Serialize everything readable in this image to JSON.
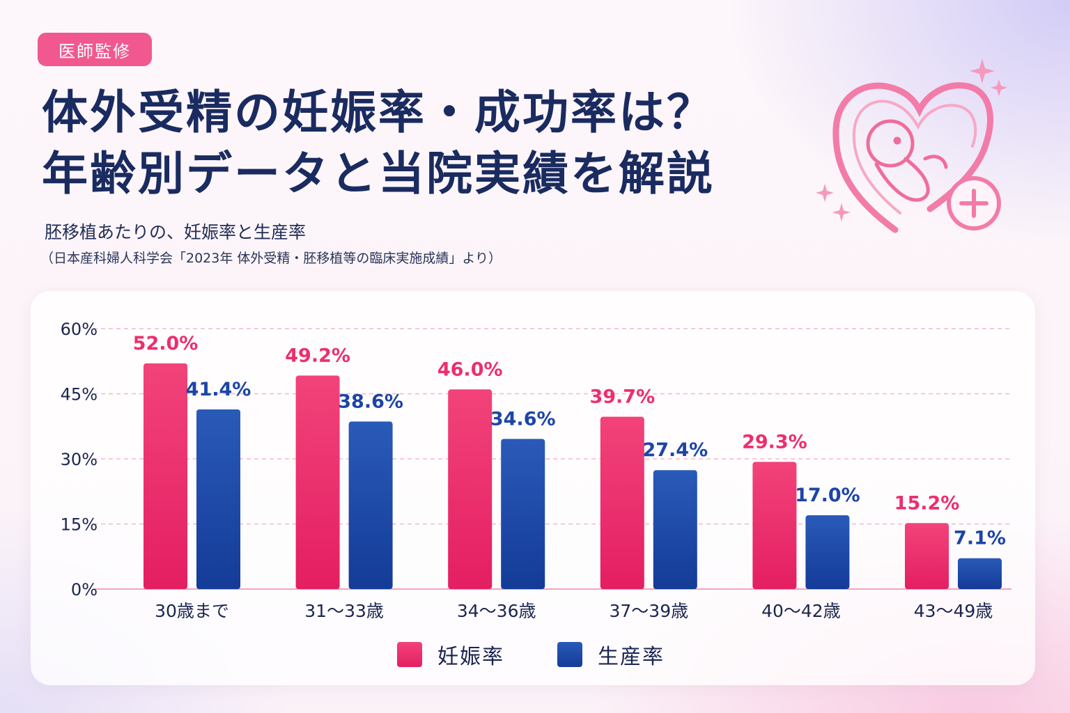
{
  "badge": "医師監修",
  "title": {
    "line1": "体外受精の妊娠率・成功率は？",
    "line2": "年齢別データと当院実績を解説"
  },
  "subtitle": "胚移植あたりの、妊娠率と生産率",
  "source": "（日本産科婦人科学会「2023年 体外受精・胚移植等の臨床実施成績」より）",
  "icons": [
    "heart-icon",
    "fetus-icon",
    "plus-circle-icon",
    "sparkle-icon"
  ],
  "colors": {
    "pregnancy": "#ec2f6c",
    "live_birth": "#1d45a6",
    "accent": "#f0588f",
    "title": "#1a2b60"
  },
  "chart_data": {
    "type": "bar",
    "categories": [
      "30歳まで",
      "31〜33歳",
      "34〜36歳",
      "37〜39歳",
      "40〜42歳",
      "43〜49歳"
    ],
    "series": [
      {
        "name": "妊娠率",
        "values": [
          52.0,
          49.2,
          46.0,
          39.7,
          29.3,
          15.2
        ],
        "labels": [
          "52.0%",
          "49.2%",
          "46.0%",
          "39.7%",
          "29.3%",
          "15.2%"
        ],
        "color": "#ec2f6c"
      },
      {
        "name": "生産率",
        "values": [
          41.4,
          38.6,
          34.6,
          27.4,
          17.0,
          7.1
        ],
        "labels": [
          "41.4%",
          "38.6%",
          "34.6%",
          "27.4%",
          "17.0%",
          "7.1%"
        ],
        "color": "#1d45a6"
      }
    ],
    "ylim": [
      0,
      60
    ],
    "yticks": [
      0,
      15,
      30,
      45,
      60
    ],
    "ytick_labels": [
      "0%",
      "15%",
      "30%",
      "45%",
      "60%"
    ],
    "grid": true,
    "legend": "bottom-center"
  }
}
